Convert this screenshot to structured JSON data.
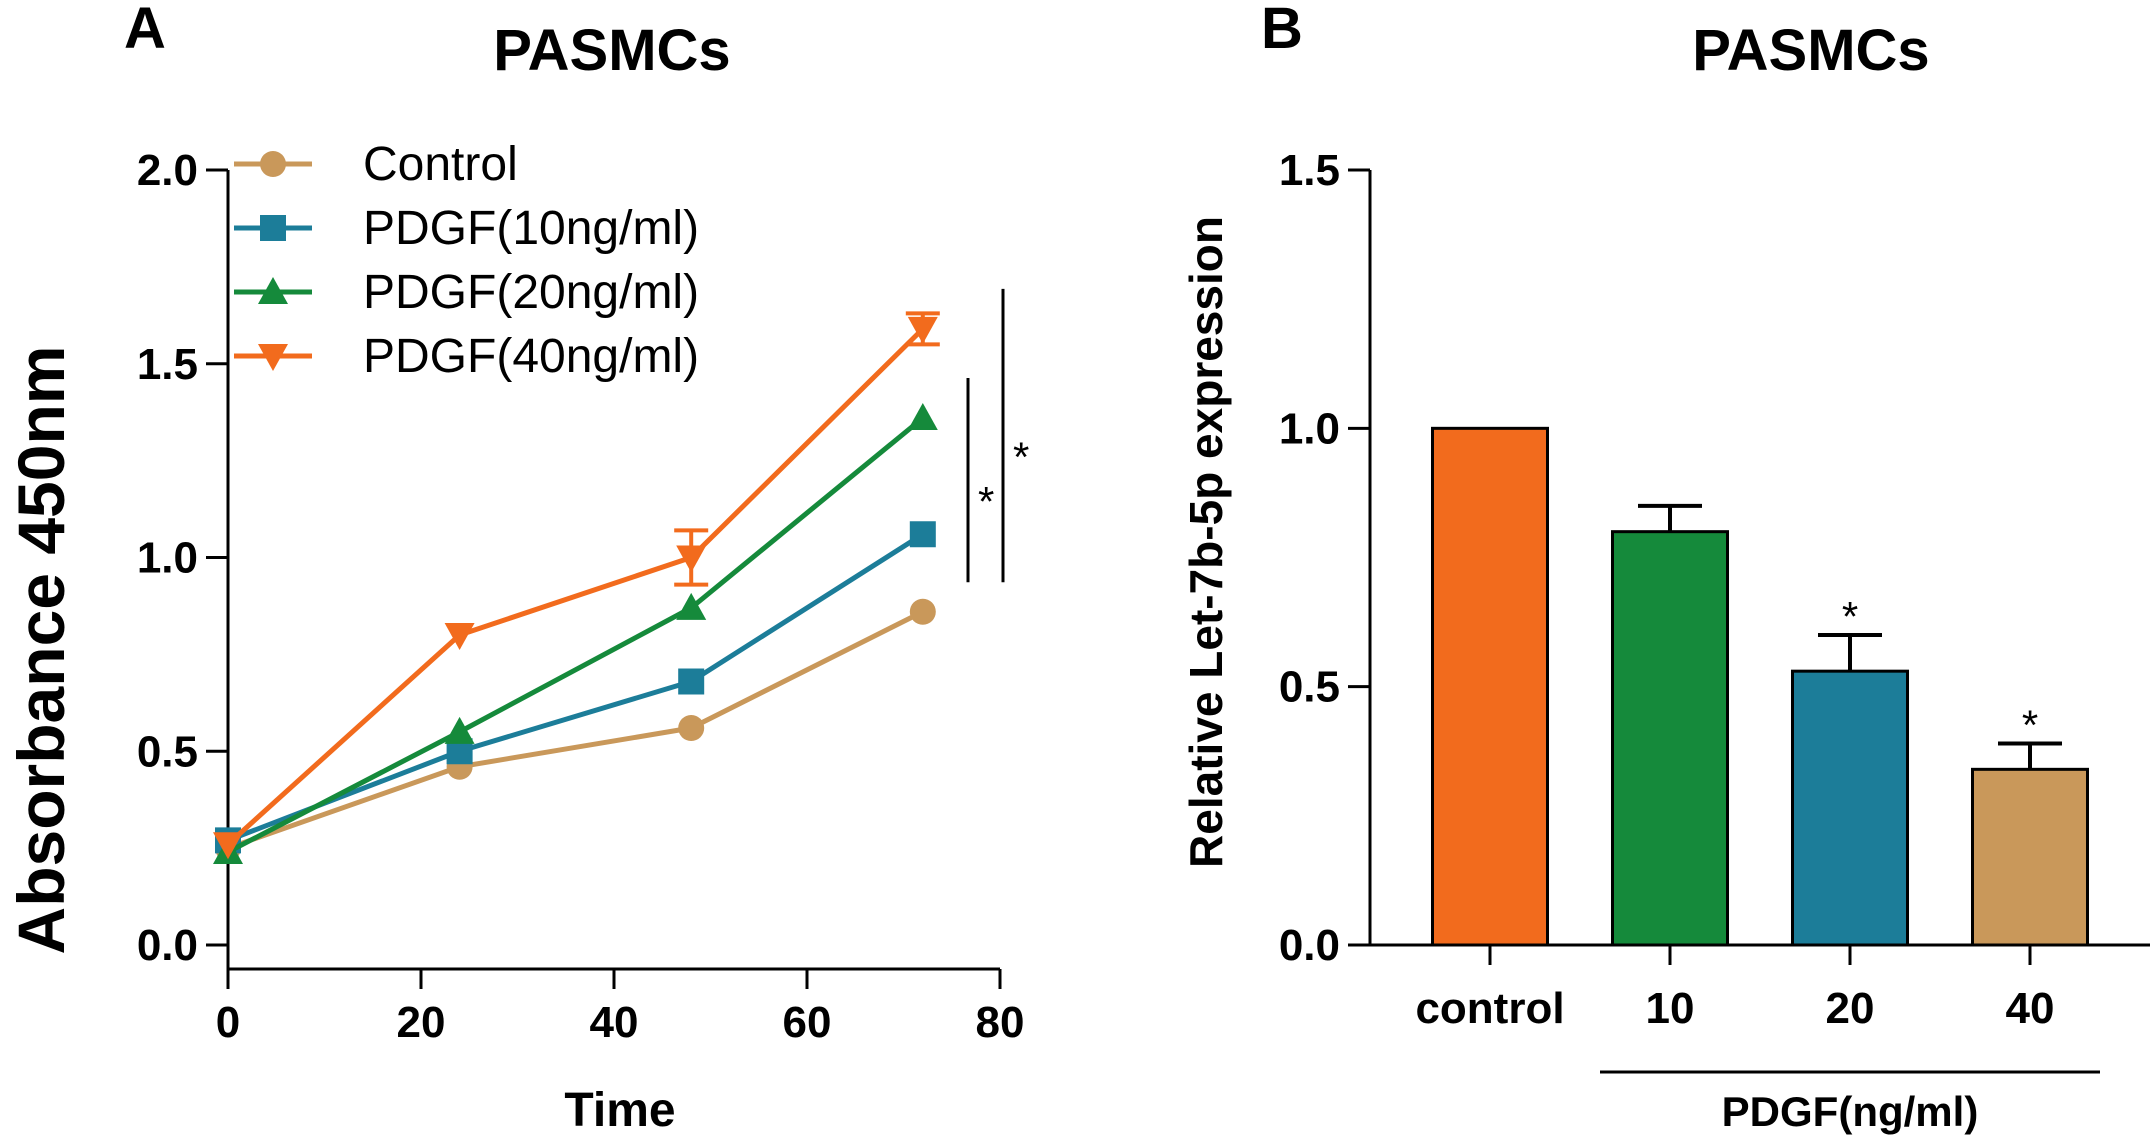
{
  "panels": {
    "a": {
      "letter": "A",
      "title": "PASMCs"
    },
    "b": {
      "letter": "B",
      "title": "PASMCs"
    }
  },
  "chart_data": [
    {
      "type": "line",
      "title": "PASMCs",
      "xlabel": "Time",
      "ylabel": "Absorbance 450nm",
      "x": [
        0,
        24,
        48,
        72
      ],
      "xlim": [
        0,
        80
      ],
      "xticks": [
        0,
        20,
        40,
        60,
        80
      ],
      "ylim": [
        0,
        2
      ],
      "yticks": [
        0.0,
        0.5,
        1.0,
        1.5,
        2.0
      ],
      "ytick_labels": [
        "0.0",
        "0.5",
        "1.0",
        "1.5",
        "2.0"
      ],
      "legend_position": "top-left",
      "series": [
        {
          "name": "Control",
          "values": [
            0.25,
            0.46,
            0.56,
            0.86
          ],
          "errors": [
            0,
            0,
            0,
            0
          ],
          "color": "#c9985a",
          "marker": "circle"
        },
        {
          "name": "PDGF(10ng/ml)",
          "values": [
            0.27,
            0.5,
            0.68,
            1.06
          ],
          "errors": [
            0,
            0,
            0,
            0
          ],
          "color": "#1c7d99",
          "marker": "square"
        },
        {
          "name": "PDGF(20ng/ml)",
          "values": [
            0.24,
            0.55,
            0.87,
            1.36
          ],
          "errors": [
            0,
            0,
            0,
            0
          ],
          "color": "#158a3b",
          "marker": "triangle-up"
        },
        {
          "name": "PDGF(40ng/ml)",
          "values": [
            0.26,
            0.8,
            1.0,
            1.59
          ],
          "errors": [
            0,
            0,
            0.07,
            0.04
          ],
          "color": "#f26b1d",
          "marker": "triangle-down"
        }
      ],
      "annotations": [
        {
          "text": "*",
          "between": [
            "PDGF(10ng/ml)",
            "PDGF(20ng/ml)"
          ]
        },
        {
          "text": "*",
          "between": [
            "PDGF(10ng/ml)",
            "PDGF(40ng/ml)"
          ]
        }
      ]
    },
    {
      "type": "bar",
      "title": "PASMCs",
      "xlabel": "PDGF(ng/ml)",
      "ylabel": "Relative Let-7b-5p expression",
      "categories": [
        "control",
        "10",
        "20",
        "40"
      ],
      "values": [
        1.0,
        0.8,
        0.53,
        0.34
      ],
      "errors": [
        0,
        0.05,
        0.07,
        0.05
      ],
      "colors": [
        "#f26b1d",
        "#158a3b",
        "#1c7d99",
        "#c9985a"
      ],
      "significance": [
        "",
        "",
        "*",
        "*"
      ],
      "ylim": [
        0,
        1.5
      ],
      "yticks": [
        0.0,
        0.5,
        1.0,
        1.5
      ],
      "ytick_labels": [
        "0.0",
        "0.5",
        "1.0",
        "1.5"
      ],
      "group_bracket": {
        "label": "PDGF(ng/ml)",
        "from": "10",
        "to": "40"
      }
    }
  ]
}
